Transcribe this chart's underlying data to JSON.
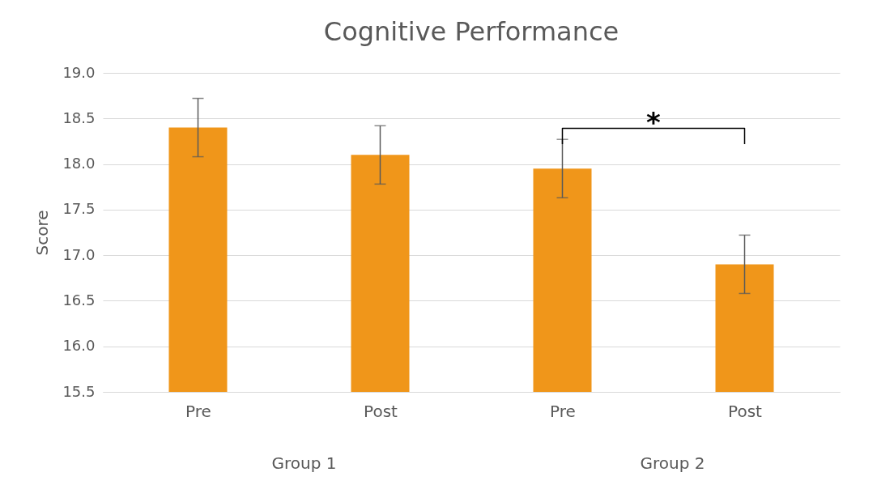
{
  "chart_data": {
    "type": "bar",
    "title": "Cognitive Performance",
    "ylabel": "Score",
    "categories": [
      "Pre",
      "Post",
      "Pre",
      "Post"
    ],
    "values": [
      18.4,
      18.1,
      17.95,
      16.9
    ],
    "errors": [
      0.32,
      0.32,
      0.32,
      0.32
    ],
    "color": "#f0961a",
    "ylim": [
      15.5,
      19
    ],
    "yticks": [
      {
        "value": 15.5,
        "label": "15.5"
      },
      {
        "value": 16,
        "label": "16.0"
      },
      {
        "value": 16.5,
        "label": "16.5"
      },
      {
        "value": 17,
        "label": "17.0"
      },
      {
        "value": 17.5,
        "label": "17.5"
      },
      {
        "value": 18,
        "label": "18.0"
      },
      {
        "value": 18.5,
        "label": "18.5"
      },
      {
        "value": 19,
        "label": "19.0"
      }
    ],
    "grid": "y",
    "annotations": [
      "*",
      "Group 1",
      "Group 2"
    ]
  }
}
